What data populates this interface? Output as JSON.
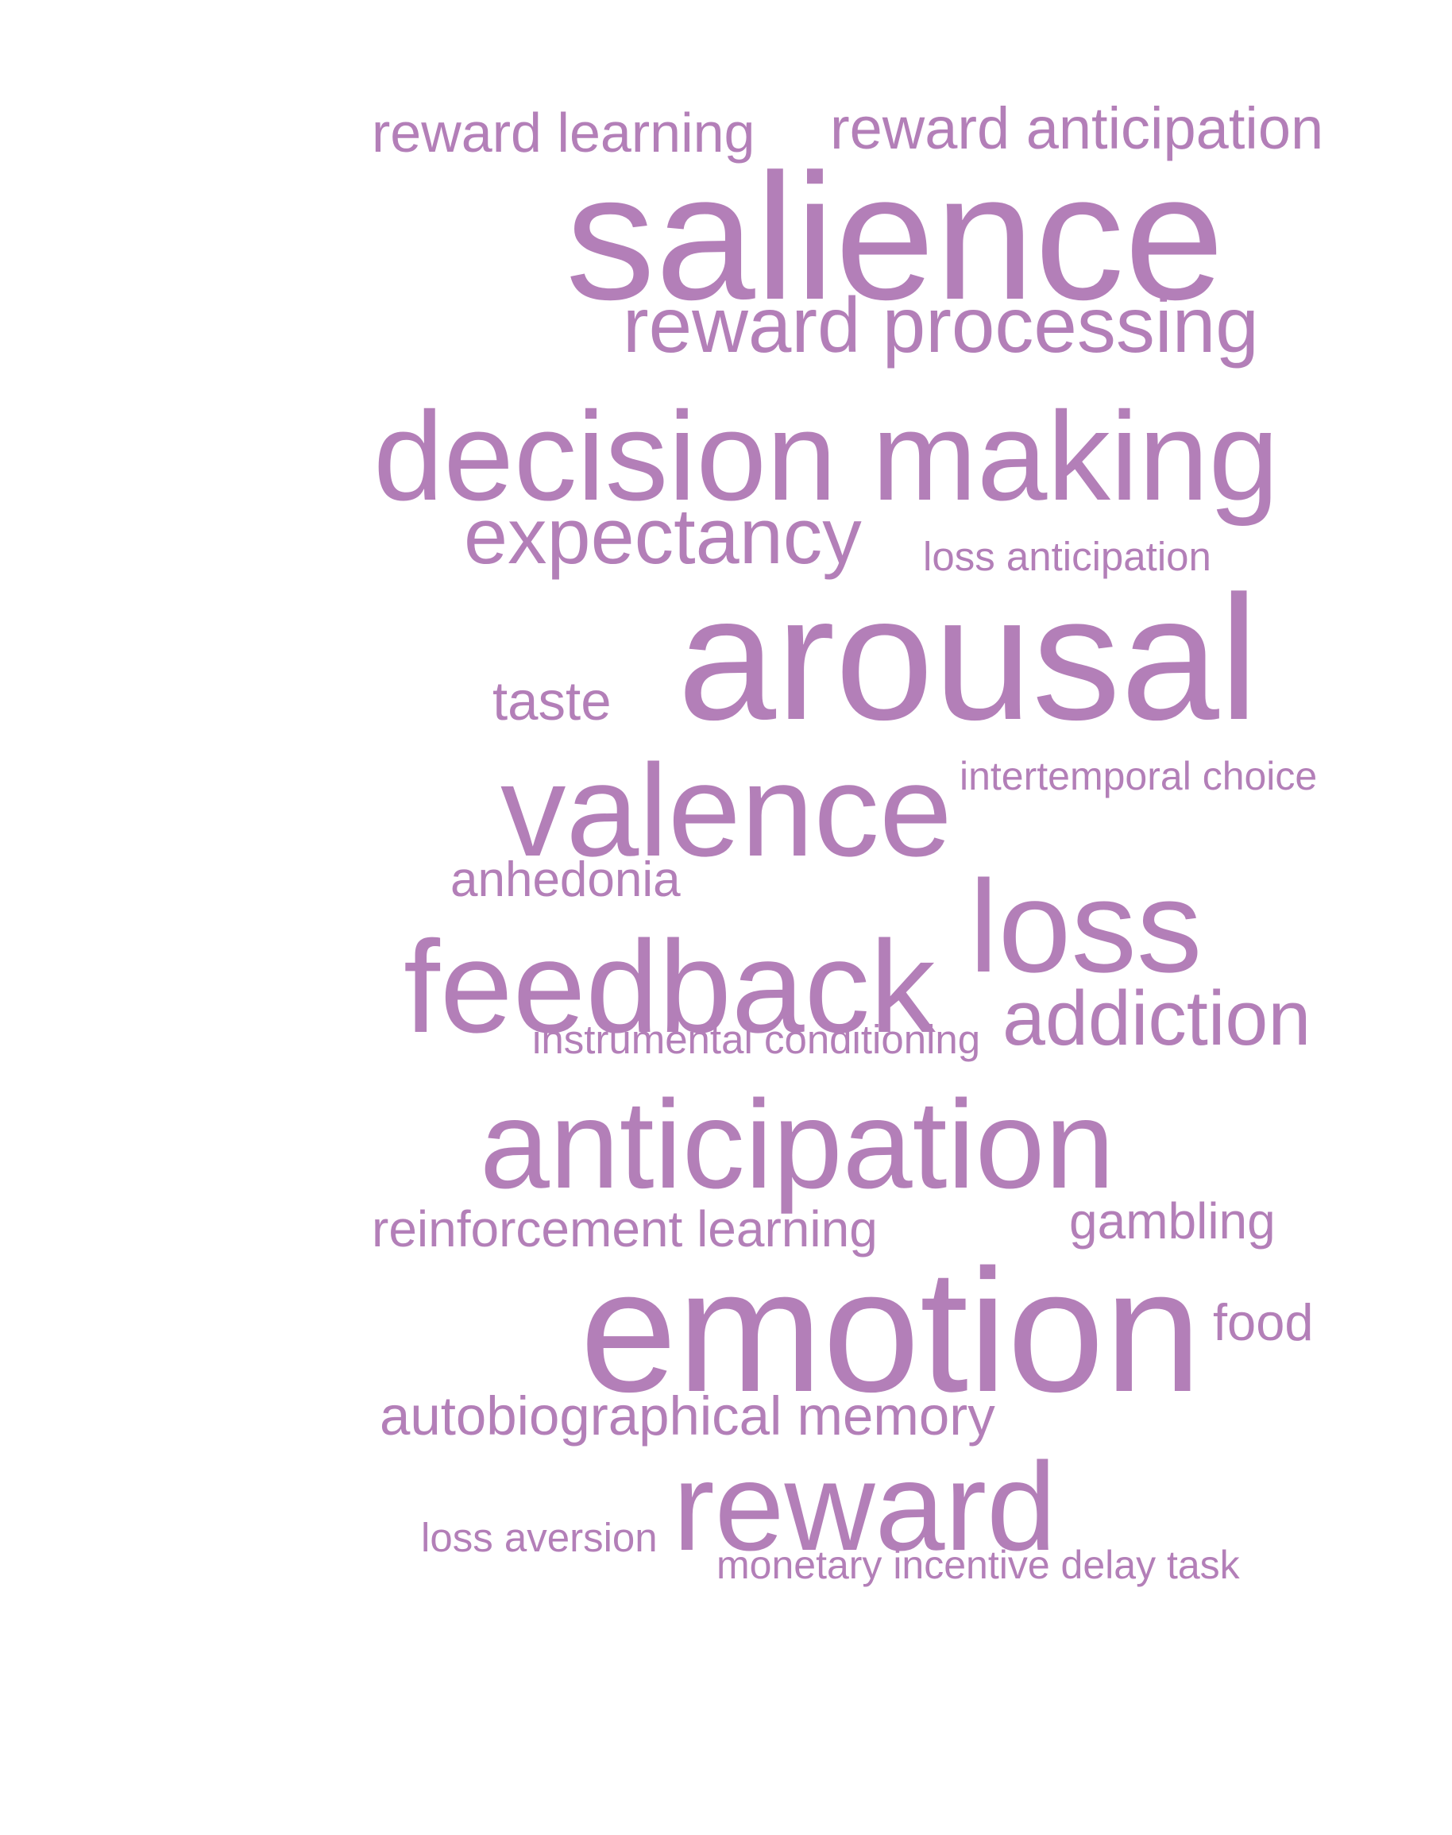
{
  "cloud": {
    "color": "#b37fb8",
    "words": [
      {
        "text": "reward learning",
        "size": 70
      },
      {
        "text": "reward anticipation",
        "size": 74
      },
      {
        "text": "salience",
        "size": 226
      },
      {
        "text": "reward processing",
        "size": 98
      },
      {
        "text": "decision making",
        "size": 159
      },
      {
        "text": "expectancy",
        "size": 99
      },
      {
        "text": "loss anticipation",
        "size": 51
      },
      {
        "text": "arousal",
        "size": 223
      },
      {
        "text": "taste",
        "size": 69
      },
      {
        "text": "valence",
        "size": 165
      },
      {
        "text": "intertemporal choice",
        "size": 50
      },
      {
        "text": "anhedonia",
        "size": 62
      },
      {
        "text": "loss",
        "size": 165
      },
      {
        "text": "feedback",
        "size": 165
      },
      {
        "text": "addiction",
        "size": 97
      },
      {
        "text": "instrumental conditioning",
        "size": 51
      },
      {
        "text": "anticipation",
        "size": 158
      },
      {
        "text": "reinforcement learning",
        "size": 64
      },
      {
        "text": "gambling",
        "size": 64
      },
      {
        "text": "emotion",
        "size": 220
      },
      {
        "text": "food",
        "size": 65
      },
      {
        "text": "autobiographical memory",
        "size": 69
      },
      {
        "text": "reward",
        "size": 158
      },
      {
        "text": "loss aversion",
        "size": 51
      },
      {
        "text": "monetary incentive delay task",
        "size": 50
      }
    ]
  }
}
